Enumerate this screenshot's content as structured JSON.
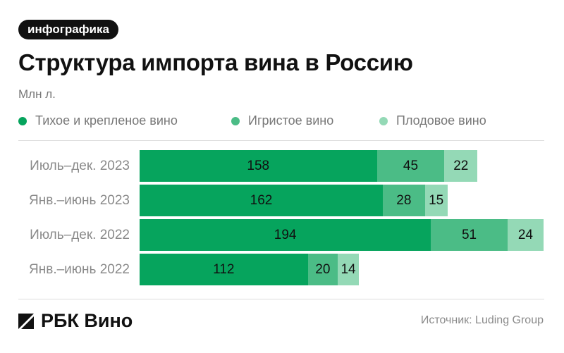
{
  "badge": "инфографика",
  "brand": "РБК Вино",
  "source": "Источник: Luding Group",
  "colors": {
    "still": "#06a45d",
    "sparkling": "#4bbc86",
    "fruit": "#94d9b6"
  },
  "chart_data": {
    "type": "bar",
    "orientation": "horizontal",
    "stacked": true,
    "title": "Структура импорта вина в Россию",
    "ylabel": "",
    "xlabel": "",
    "unit_label": "Млн л.",
    "legend_position": "top",
    "grid": false,
    "categories": [
      "Июль–дек. 2023",
      "Янв.–июнь 2023",
      "Июль–дек. 2022",
      "Янв.–июнь 2022"
    ],
    "series": [
      {
        "name": "Тихое и крепленое вино",
        "values": [
          158,
          162,
          194,
          112
        ],
        "color_key": "still"
      },
      {
        "name": "Игристое вино",
        "values": [
          45,
          28,
          51,
          20
        ],
        "color_key": "sparkling"
      },
      {
        "name": "Плодовое вино",
        "values": [
          22,
          15,
          24,
          14
        ],
        "color_key": "fruit"
      }
    ]
  }
}
